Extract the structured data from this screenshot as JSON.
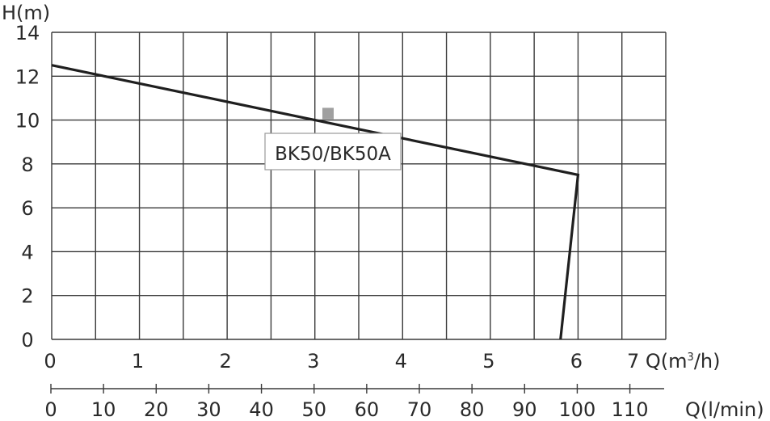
{
  "chart_data": {
    "type": "line",
    "title": "",
    "xlabel": "Q(m³/h)",
    "xlabel_secondary": "Q(l/min)",
    "ylabel": "H(m)",
    "xlim": [
      0,
      7
    ],
    "ylim": [
      0,
      14
    ],
    "x_ticks": [
      "0",
      "1",
      "2",
      "3",
      "4",
      "5",
      "6",
      "7"
    ],
    "x_ticks_secondary": [
      "0",
      "10",
      "20",
      "30",
      "40",
      "50",
      "60",
      "70",
      "80",
      "90",
      "100",
      "110"
    ],
    "y_ticks": [
      "0",
      "2",
      "4",
      "6",
      "8",
      "10",
      "12",
      "14"
    ],
    "grid": true,
    "series": [
      {
        "name": "BK50/BK50A",
        "x": [
          0,
          6.0,
          5.8
        ],
        "y": [
          12.5,
          7.5,
          0
        ]
      }
    ],
    "annotations": [
      {
        "type": "marker",
        "label": "BK50/BK50A",
        "x": 3.15,
        "y": 10.3,
        "color": "#a0a0a0"
      }
    ]
  },
  "labels": {
    "y_axis": "H(m)",
    "x_axis": "7 Q(m",
    "x_axis_sup": "3",
    "x_axis_tail": "/h)",
    "x_axis_secondary": "Q(l/min)",
    "legend": "BK50/BK50A"
  }
}
